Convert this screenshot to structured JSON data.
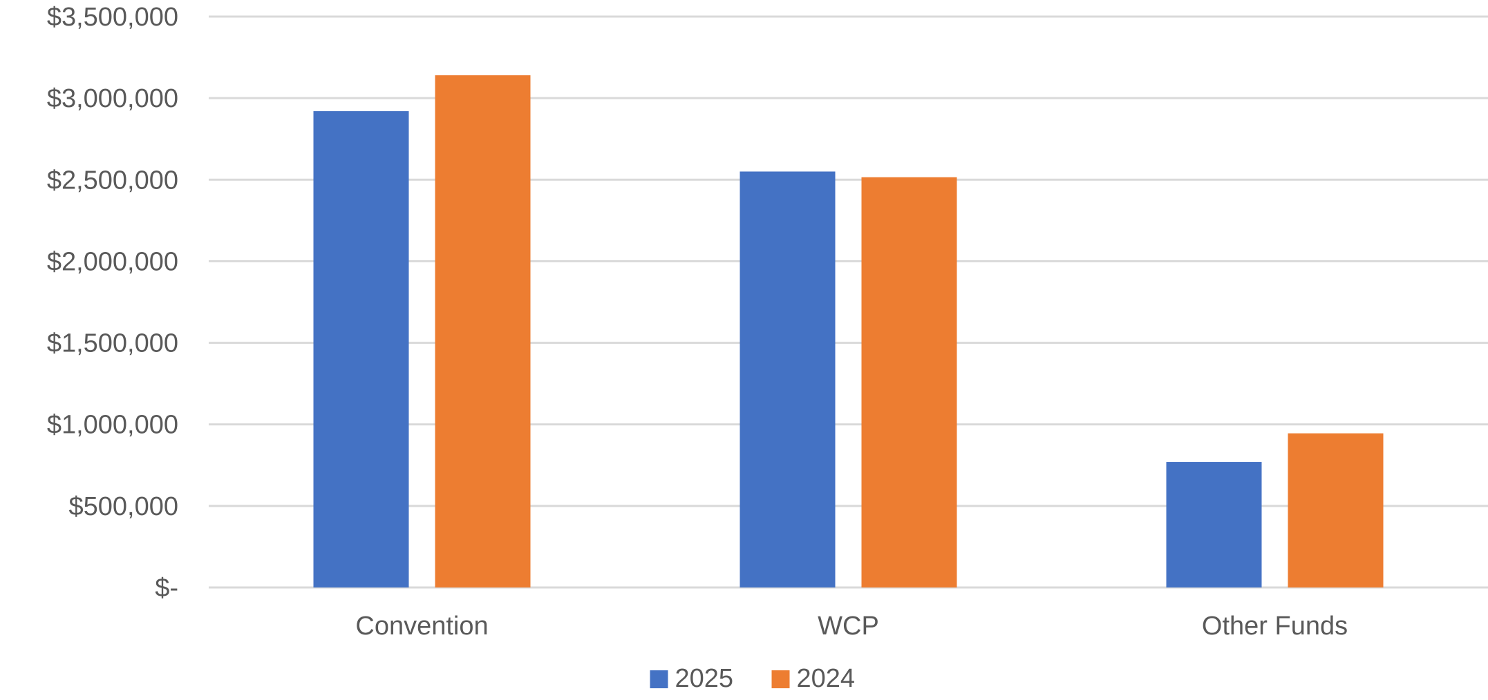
{
  "chart_data": {
    "type": "bar",
    "title": "",
    "xlabel": "",
    "ylabel": "",
    "categories": [
      "Convention",
      "WCP",
      "Other Funds"
    ],
    "series": [
      {
        "name": "2025",
        "color": "#4472c4",
        "values": [
          2920000,
          2550000,
          770000
        ]
      },
      {
        "name": "2024",
        "color": "#ed7d31",
        "values": [
          3140000,
          2515000,
          945000
        ]
      }
    ],
    "ylim": [
      0,
      3500000
    ],
    "y_ticks": [
      0,
      500000,
      1000000,
      1500000,
      2000000,
      2500000,
      3000000,
      3500000
    ],
    "y_tick_labels": [
      "$-",
      "$500,000",
      "$1,000,000",
      "$1,500,000",
      "$2,000,000",
      "$2,500,000",
      "$3,000,000",
      "$3,500,000"
    ],
    "grid": true,
    "legend_position": "bottom"
  }
}
